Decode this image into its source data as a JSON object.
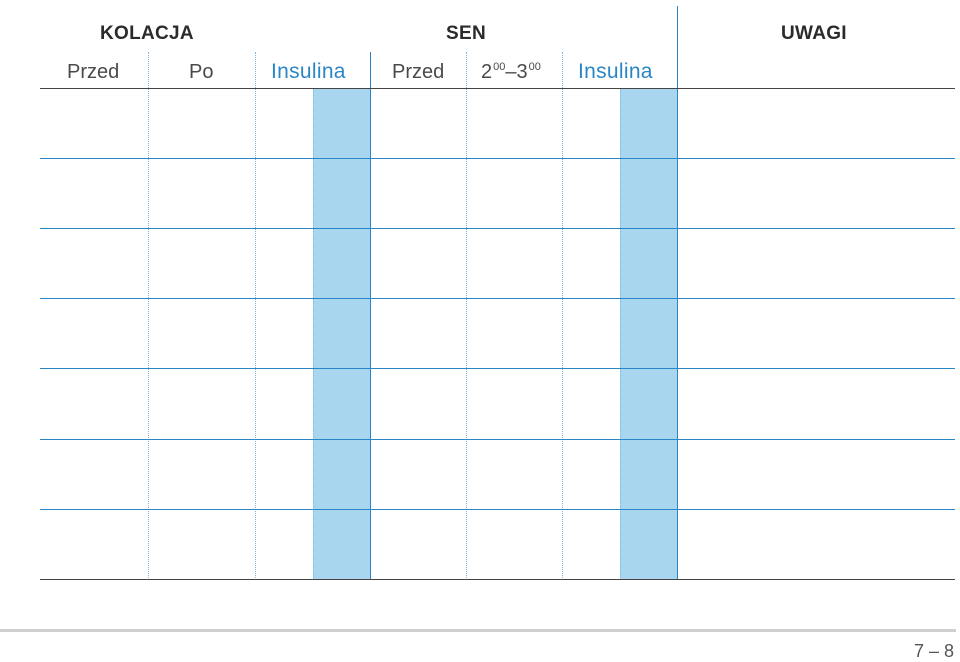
{
  "headers": {
    "kolacja": "KOLACJA",
    "sen": "SEN",
    "uwagi": "UWAGI"
  },
  "subheaders": {
    "kolacja_przed": "Przed",
    "kolacja_po": "Po",
    "kolacja_insulina": "Insulina",
    "sen_przed": "Przed",
    "sen_time_h1": "2",
    "sen_time_m1": "00",
    "sen_time_sep": "–3",
    "sen_time_m2": "00",
    "sen_insulina": "Insulina"
  },
  "table": {
    "rows": 7,
    "cells": []
  },
  "footer": {
    "page_number": "7 – 8"
  },
  "colors": {
    "accent_blue": "#2a86c5",
    "shade_blue": "#a9d6ef",
    "rule_dark": "#444444"
  }
}
